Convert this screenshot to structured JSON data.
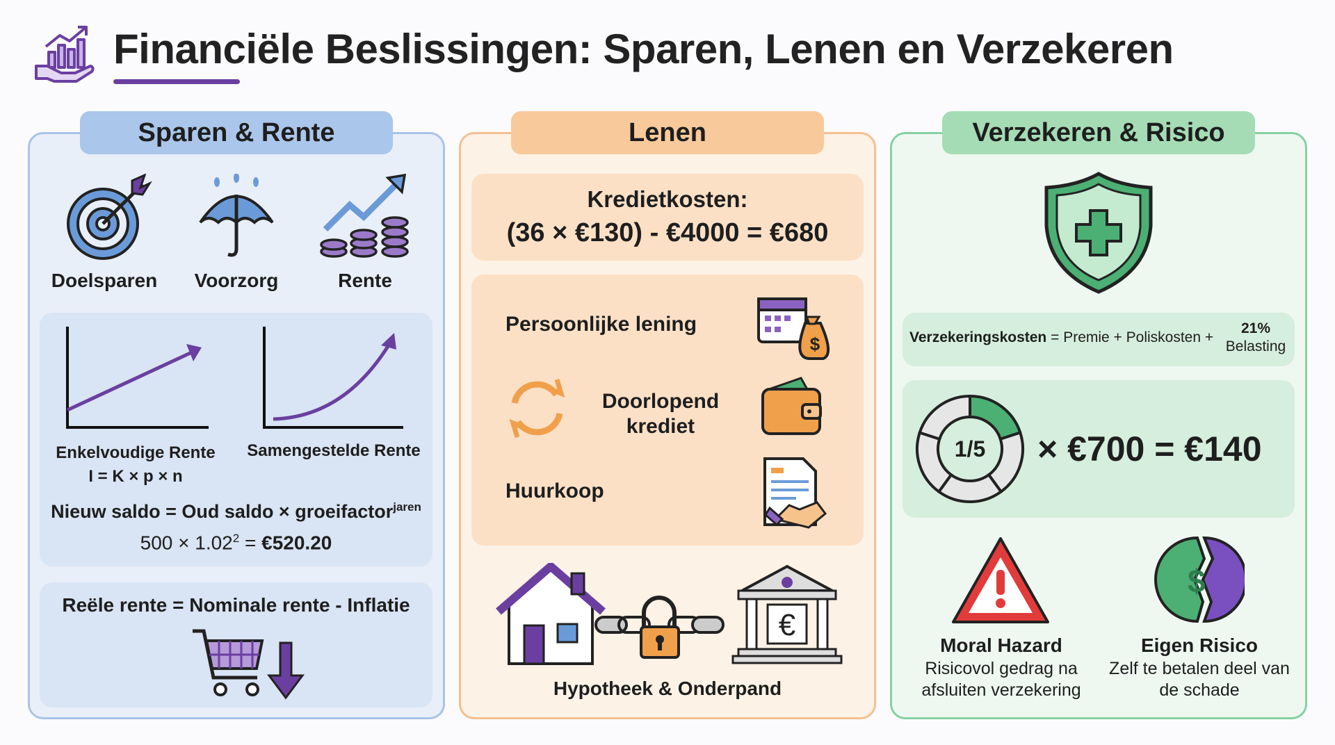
{
  "header": {
    "title": "Financiële Beslissingen: Sparen, Lenen en Verzekeren",
    "icon": "finance-chart-hand-icon"
  },
  "colors": {
    "accent": "#6b3fa0",
    "blue": "#6a9bd8",
    "orange": "#f0a04b",
    "green": "#4caf73"
  },
  "sparen": {
    "title": "Sparen & Rente",
    "icons": [
      {
        "label": "Doelsparen",
        "icon": "target-icon"
      },
      {
        "label": "Voorzorg",
        "icon": "umbrella-icon"
      },
      {
        "label": "Rente",
        "icon": "growth-coins-icon"
      }
    ],
    "simple_label": "Enkelvoudige Rente",
    "simple_formula": "I = K × p × n",
    "compound_label": "Samengestelde Rente",
    "formula_main": "Nieuw saldo = Oud saldo × groeifactor",
    "formula_sup": "jaren",
    "example_a": "500 × 1.02",
    "example_sup": "2",
    "example_eq": " = ",
    "example_result": "€520.20",
    "real_rate": "Reële rente = Nominale rente - Inflatie"
  },
  "lenen": {
    "title": "Lenen",
    "cost_label": "Kredietkosten:",
    "cost_formula": "(36 × €130) - €4000 = €680",
    "types": [
      "Persoonlijke lening",
      "Doorlopend krediet",
      "Huurkoop"
    ],
    "mortgage": "Hypotheek & Onderpand"
  },
  "verzekeren": {
    "title": "Verzekeren & Risico",
    "formula_bold": "Verzekeringskosten",
    "formula_rest": " = Premie + Poliskosten + ",
    "tax_pct": "21%",
    "tax_label": "Belasting",
    "fraction": "1/5",
    "fraction_value": 0.2,
    "calc": "× €700 = €140",
    "moral_title": "Moral Hazard",
    "moral_desc": "Risicovol gedrag na afsluiten verzekering",
    "own_title": "Eigen Risico",
    "own_desc": "Zelf te betalen deel van de schade"
  }
}
